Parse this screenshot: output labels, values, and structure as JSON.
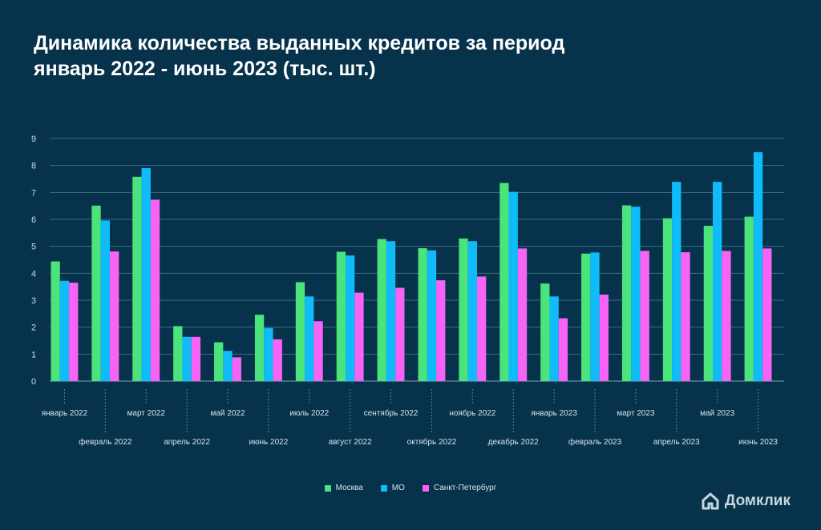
{
  "chart_data": {
    "type": "bar",
    "title": "Динамика количества выданных кредитов за период январь 2022 - июнь 2023 (тыс. шт.)",
    "title_lines": [
      "Динамика количества выданных кредитов за период",
      "январь 2022 - июнь 2023 (тыс. шт.)"
    ],
    "xlabel": "",
    "ylabel": "",
    "ylim": [
      0,
      9
    ],
    "yticks": [
      "0",
      "1",
      "2",
      "3",
      "4",
      "5",
      "6",
      "7",
      "8",
      "9"
    ],
    "grid": true,
    "legend_position": "bottom",
    "categories": [
      "январь 2022",
      "февраль 2022",
      "март 2022",
      "апрель 2022",
      "май 2022",
      "июнь 2022",
      "июль 2022",
      "август 2022",
      "сентябрь 2022",
      "октябрь 2022",
      "ноябрь 2022",
      "декабрь 2022",
      "январь 2023",
      "февраль 2023",
      "март 2023",
      "апрель 2023",
      "май 2023",
      "июнь 2023"
    ],
    "series": [
      {
        "name": "Москва",
        "color": "#4be37c",
        "values": [
          4.44,
          6.51,
          7.58,
          2.04,
          1.44,
          2.46,
          3.67,
          4.8,
          5.27,
          4.93,
          5.29,
          7.35,
          3.62,
          4.73,
          6.52,
          6.04,
          5.76,
          6.1
        ]
      },
      {
        "name": "МО",
        "color": "#0fbcf9",
        "values": [
          3.72,
          5.96,
          7.9,
          1.64,
          1.12,
          1.97,
          3.14,
          4.66,
          5.19,
          4.85,
          5.19,
          7.02,
          3.14,
          4.77,
          6.47,
          7.39,
          7.39,
          8.49
        ]
      },
      {
        "name": "Санкт-Петербург",
        "color": "#f763f5",
        "values": [
          3.65,
          4.81,
          6.73,
          1.64,
          0.88,
          1.55,
          2.22,
          3.28,
          3.46,
          3.74,
          3.88,
          4.92,
          2.33,
          3.21,
          4.83,
          4.78,
          4.83,
          4.92
        ]
      }
    ]
  },
  "brand": {
    "logo_text": "Домклик",
    "icon": "house-icon"
  }
}
